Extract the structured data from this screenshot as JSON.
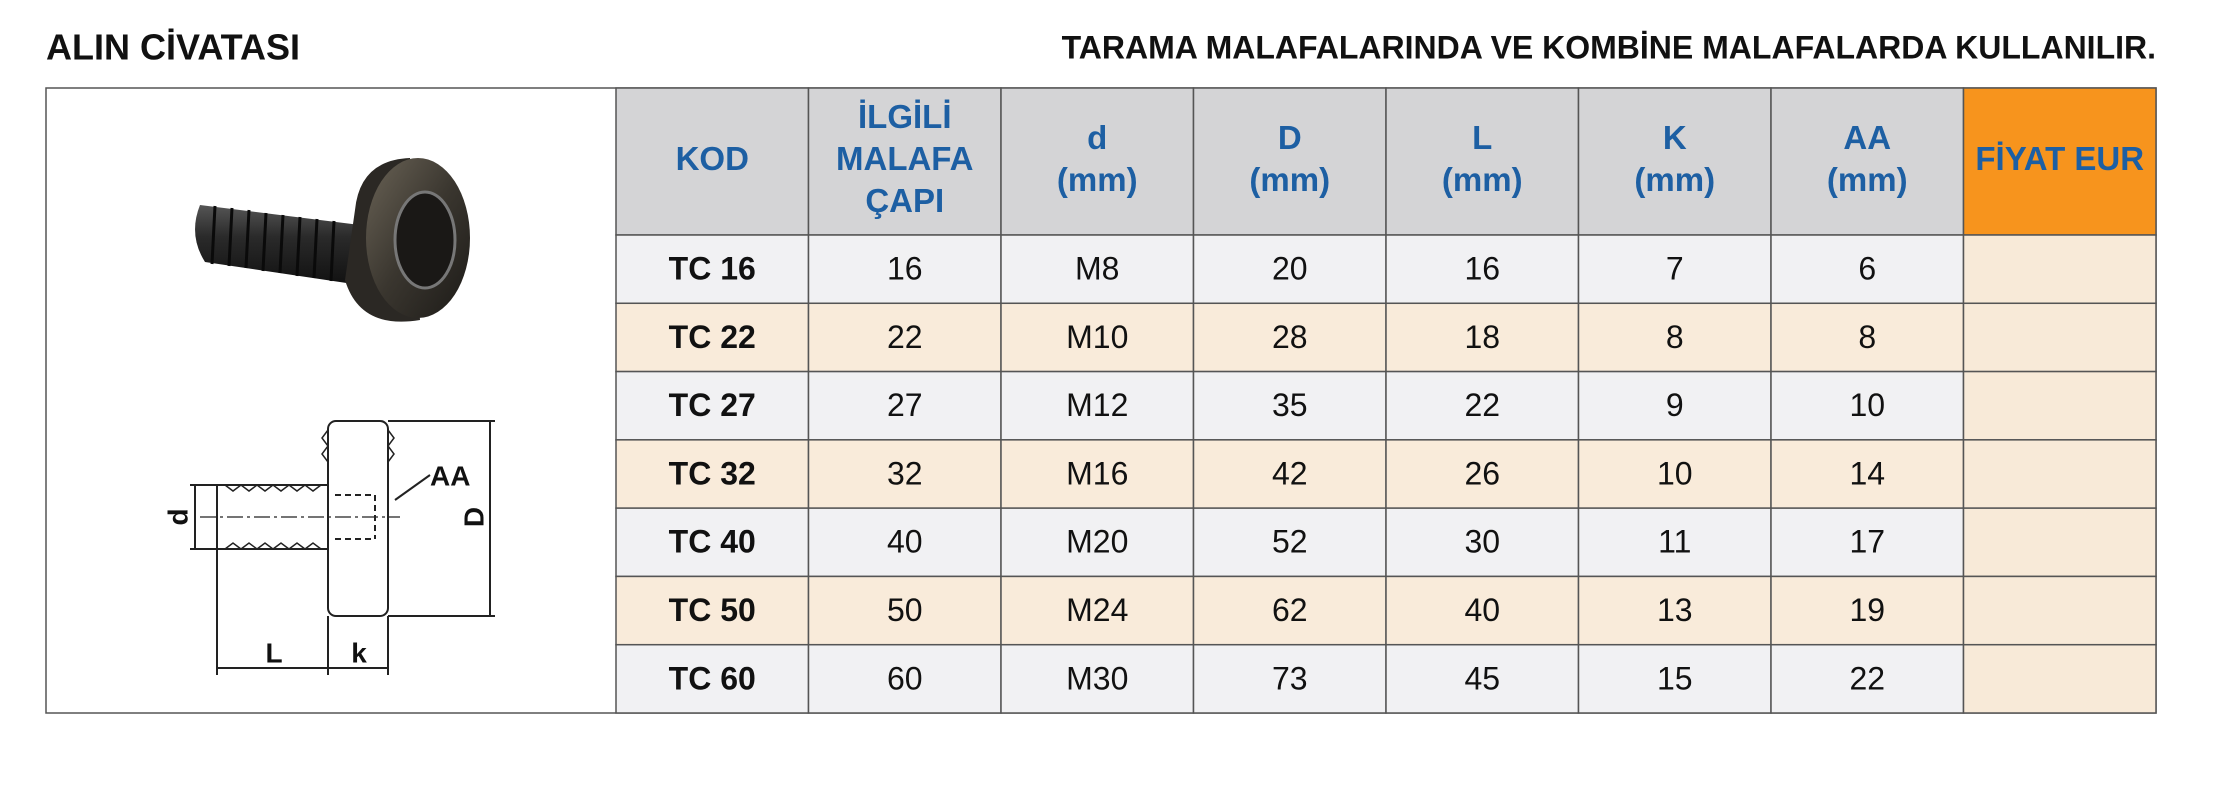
{
  "header": {
    "title": "ALIN CİVATASI",
    "subtitle": "TARAMA MALAFALARINDA VE KOMBİNE MALAFALARDA KULLANILIR."
  },
  "diagram": {
    "labels": {
      "d": "d",
      "D": "D",
      "L": "L",
      "k": "k",
      "AA": "AA"
    }
  },
  "table": {
    "columns": [
      [
        "KOD"
      ],
      [
        "İLGİLİ",
        "MALAFA",
        "ÇAPI"
      ],
      [
        "d",
        "(mm)"
      ],
      [
        "D",
        "(mm)"
      ],
      [
        "L",
        "(mm)"
      ],
      [
        "K",
        "(mm)"
      ],
      [
        "AA",
        "(mm)"
      ],
      [
        "FİYAT EUR"
      ]
    ],
    "rows": [
      [
        "TC 16",
        "16",
        "M8",
        "20",
        "16",
        "7",
        "6"
      ],
      [
        "TC 22",
        "22",
        "M10",
        "28",
        "18",
        "8",
        "8"
      ],
      [
        "TC 27",
        "27",
        "M12",
        "35",
        "22",
        "9",
        "10"
      ],
      [
        "TC 32",
        "32",
        "M16",
        "42",
        "26",
        "10",
        "14"
      ],
      [
        "TC 40",
        "40",
        "M20",
        "52",
        "30",
        "11",
        "17"
      ],
      [
        "TC 50",
        "50",
        "M24",
        "62",
        "40",
        "13",
        "19"
      ],
      [
        "TC 60",
        "60",
        "M30",
        "73",
        "45",
        "15",
        "22"
      ]
    ]
  }
}
